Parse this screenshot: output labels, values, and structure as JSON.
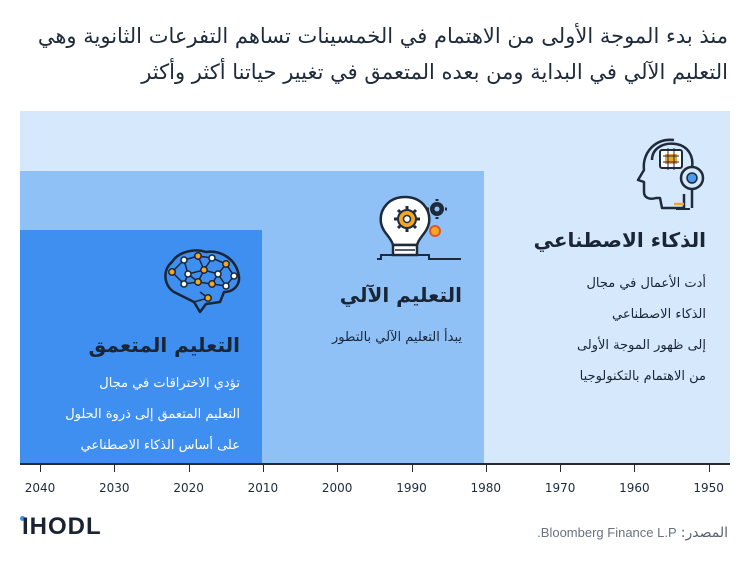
{
  "headline": {
    "line1": "منذ بدء الموجة الأولى من الاهتمام في الخمسينات تساهم التفرعات الثانوية وهي",
    "line2": "التعليم الآلي في البداية ومن بعده المتعمق في تغيير حياتنا أكثر وأكثر"
  },
  "stages": [
    {
      "title": "الذكاء الاصطناعي",
      "lines": [
        "أدت الأعمال في مجال",
        "الذكاء الاصطناعي",
        "إلى ظهور الموجة الأولى",
        "من الاهتمام بالتكنولوجيا"
      ],
      "start_year": 1950,
      "icon": "robot-head-icon",
      "color": "#d6e8fb"
    },
    {
      "title": "التعليم الآلي",
      "lines": [
        "يبدأ التعليم الآلي بالتطور"
      ],
      "start_year": 1980,
      "icon": "lightbulb-gears-icon",
      "color": "#8fc1f6"
    },
    {
      "title": "التعليم المتعمق",
      "lines": [
        "تؤدي الاختراقات في مجال",
        "التعليم المتعمق إلى ذروة الحلول",
        "على أساس الذكاء الاصطناعي"
      ],
      "start_year": 2010,
      "icon": "neural-brain-icon",
      "color": "#3f8ff0"
    }
  ],
  "axis": {
    "years": [
      "2040",
      "2030",
      "2020",
      "2010",
      "2000",
      "1990",
      "1980",
      "1970",
      "1960",
      "1950"
    ],
    "direction": "right-to-left"
  },
  "footer": {
    "logo": "IHODL",
    "source_label": "المصدر:",
    "source_value": "Bloomberg Finance L.P."
  },
  "colors": {
    "accent": "#3f8ff0",
    "text": "#1f2b3b",
    "icon_orange": "#f5a623"
  }
}
